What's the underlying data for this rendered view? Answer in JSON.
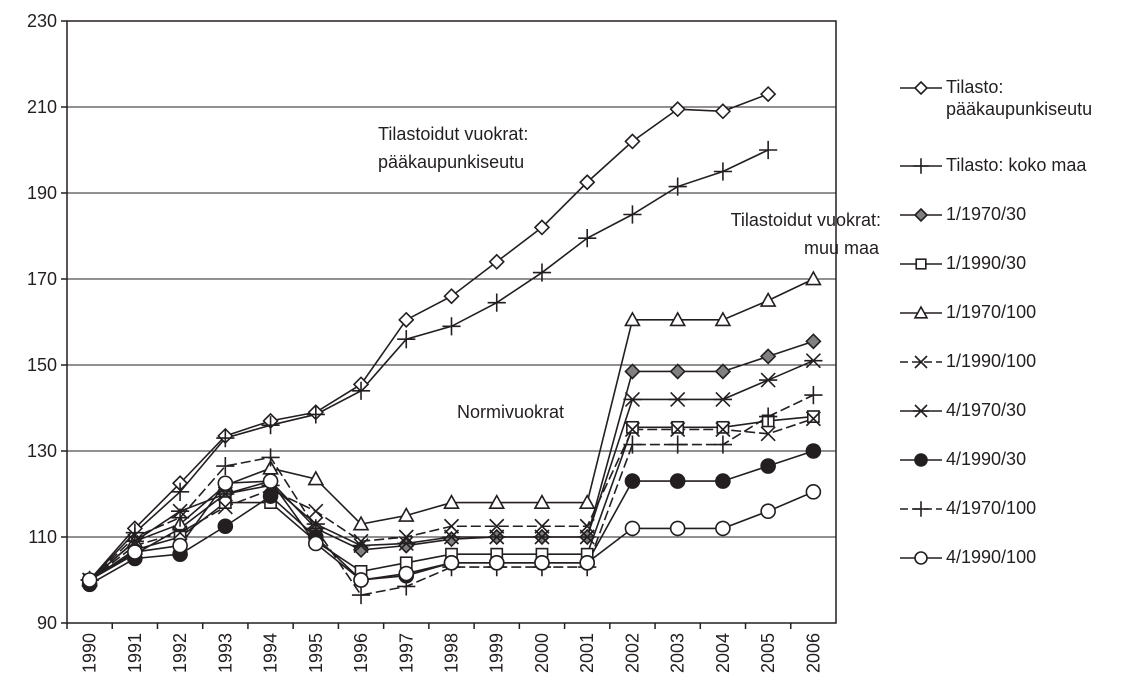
{
  "chart_data": {
    "type": "line",
    "categories": [
      "1990",
      "1991",
      "1992",
      "1993",
      "1994",
      "1995",
      "1996",
      "1997",
      "1998",
      "1999",
      "2000",
      "2001",
      "2002",
      "2003",
      "2004",
      "2005",
      "2006"
    ],
    "ylim": [
      90,
      230
    ],
    "yticks": [
      90,
      110,
      130,
      150,
      170,
      190,
      210,
      230
    ],
    "grid": true,
    "annotations": [
      [
        "Tilastoidut vuokrat:",
        "pääkaupunkiseutu"
      ],
      [
        "Tilastoidut vuokrat:",
        "muu maa"
      ],
      [
        "Normivuokrat"
      ]
    ],
    "series": [
      {
        "name": "Tilasto: pääkaupunkiseutu",
        "color": "#231f20",
        "marker": "diamond",
        "fill": "#ffffff",
        "dash": false,
        "values": [
          100,
          112,
          122.5,
          133.5,
          137,
          139,
          145.5,
          160.5,
          166,
          174,
          182,
          192.5,
          202,
          209.5,
          209,
          213,
          null
        ]
      },
      {
        "name": "Tilasto: koko maa",
        "color": "#231f20",
        "marker": "plus",
        "fill": "none",
        "dash": false,
        "values": [
          100,
          111,
          120.5,
          133,
          136,
          138.5,
          144,
          156,
          159,
          164.5,
          171.5,
          179.5,
          185,
          191.5,
          195,
          200,
          null
        ]
      },
      {
        "name": "1/1970/30",
        "color": "#231f20",
        "marker": "diamond",
        "fill": "#808080",
        "dash": false,
        "values": [
          100,
          106,
          112,
          120,
          123,
          112,
          107,
          108,
          109.5,
          110,
          110,
          110,
          148.5,
          148.5,
          148.5,
          152,
          155.5
        ]
      },
      {
        "name": "1/1990/30",
        "color": "#231f20",
        "marker": "square",
        "fill": "#ffffff",
        "dash": false,
        "values": [
          100,
          107,
          110,
          118,
          118,
          109,
          102,
          104,
          106,
          106,
          106,
          106,
          135.5,
          135.5,
          135.5,
          137,
          138
        ]
      },
      {
        "name": "1/1970/100",
        "color": "#231f20",
        "marker": "triangle",
        "fill": "#ffffff",
        "dash": false,
        "values": [
          100,
          109,
          113,
          122,
          126,
          123.5,
          113,
          115,
          118,
          118,
          118,
          118,
          160.5,
          160.5,
          160.5,
          165,
          170
        ]
      },
      {
        "name": "1/1990/100",
        "color": "#231f20",
        "marker": "x",
        "fill": "none",
        "dash": true,
        "values": [
          100,
          108,
          111,
          117,
          121,
          116,
          109,
          110,
          112.5,
          112.5,
          112.5,
          112.5,
          135,
          135,
          135,
          134,
          137.5
        ]
      },
      {
        "name": "4/1970/30",
        "color": "#231f20",
        "marker": "asterisk",
        "fill": "none",
        "dash": false,
        "values": [
          100,
          109,
          116,
          120,
          122,
          113,
          108,
          108.5,
          110,
          110,
          110,
          110,
          142,
          142,
          142,
          146.5,
          151
        ]
      },
      {
        "name": "4/1990/30",
        "color": "#231f20",
        "marker": "circle",
        "fill": "#231f20",
        "dash": false,
        "values": [
          99,
          105,
          106,
          112.5,
          119.5,
          110,
          100,
          101,
          104,
          104,
          104,
          104,
          123,
          123,
          123,
          126.5,
          130
        ]
      },
      {
        "name": "4/1970/100",
        "color": "#231f20",
        "marker": "plus",
        "fill": "none",
        "dash": true,
        "values": [
          100,
          110,
          114.5,
          126.5,
          128.5,
          112,
          96.5,
          98.5,
          103,
          103,
          103,
          103,
          131.5,
          131.5,
          131.5,
          138,
          143
        ]
      },
      {
        "name": "4/1990/100",
        "color": "#231f20",
        "marker": "circle",
        "fill": "#ffffff",
        "dash": false,
        "values": [
          100,
          106.5,
          108,
          122.5,
          123,
          108.5,
          100,
          101.5,
          104,
          104,
          104,
          104,
          112,
          112,
          112,
          116,
          120.5
        ]
      }
    ]
  }
}
